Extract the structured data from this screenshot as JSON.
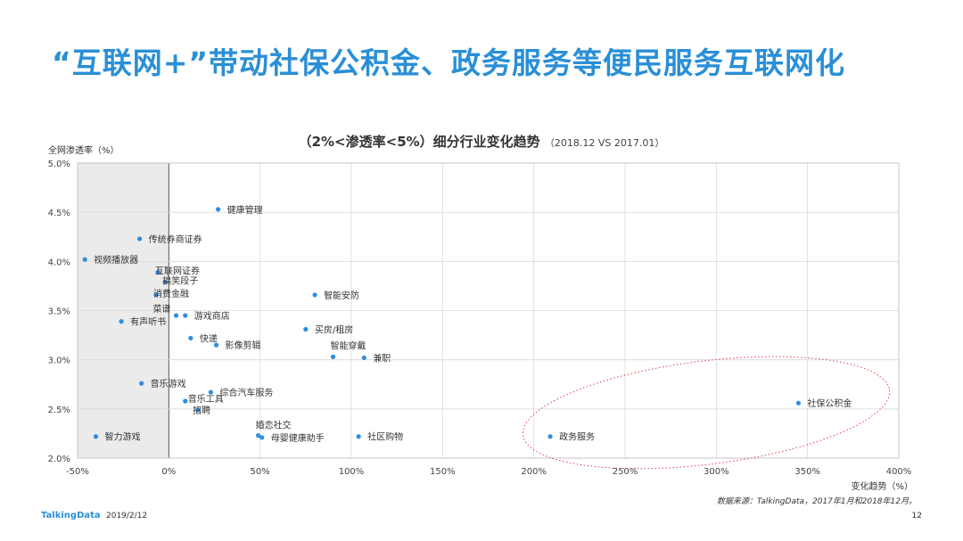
{
  "slide": {
    "title": "“互联网+”带动社保公积金、政务服务等便民服务互联网化",
    "source": "数据来源：TalkingData，2017年1月和2018年12月。",
    "footer_brand": "TalkingData",
    "footer_date": "2019/2/12",
    "page_number": "12"
  },
  "chart_data": {
    "type": "scatter",
    "title": "（2%<渗透率<5%）细分行业变化趋势",
    "subtitle": "（2018.12 VS 2017.01）",
    "xlabel": "变化趋势（%）",
    "ylabel": "全网渗透率（%）",
    "xlim": [
      -50,
      400
    ],
    "ylim": [
      2.0,
      5.0
    ],
    "x_ticks": [
      "-50%",
      "0%",
      "50%",
      "100%",
      "150%",
      "200%",
      "250%",
      "300%",
      "350%",
      "400%"
    ],
    "y_ticks": [
      "2.0%",
      "2.5%",
      "3.0%",
      "3.5%",
      "4.0%",
      "4.5%",
      "5.0%"
    ],
    "x_tick_values": [
      -50,
      0,
      50,
      100,
      150,
      200,
      250,
      300,
      350,
      400
    ],
    "y_tick_values": [
      2.0,
      2.5,
      3.0,
      3.5,
      4.0,
      4.5,
      5.0
    ],
    "grid": true,
    "shaded_negative_region": true,
    "highlight": "red dotted ellipse around 政务服务 and 社保公积金",
    "colors": {
      "point": "#2f8ee0",
      "shade": "#ebebeb",
      "ellipse": "#e0444c",
      "title": "#2a8fd6"
    },
    "points": [
      {
        "label": "健康管理",
        "x": 27,
        "y": 4.53
      },
      {
        "label": "传统券商证券",
        "x": -16,
        "y": 4.23
      },
      {
        "label": "视频播放器",
        "x": -46,
        "y": 4.02
      },
      {
        "label": "互联网证券",
        "x": -6,
        "y": 3.89
      },
      {
        "label": "搞笑段子",
        "x": -2,
        "y": 3.79
      },
      {
        "label": "消费金融",
        "x": -7,
        "y": 3.66
      },
      {
        "label": "菜谱",
        "x": 4,
        "y": 3.45
      },
      {
        "label": "游戏商店",
        "x": 9,
        "y": 3.45
      },
      {
        "label": "有声听书",
        "x": -26,
        "y": 3.39
      },
      {
        "label": "智能安防",
        "x": 80,
        "y": 3.66
      },
      {
        "label": "买房/租房",
        "x": 75,
        "y": 3.31
      },
      {
        "label": "快递",
        "x": 12,
        "y": 3.22
      },
      {
        "label": "影像剪辑",
        "x": 26,
        "y": 3.15
      },
      {
        "label": "智能穿戴",
        "x": 90,
        "y": 3.03
      },
      {
        "label": "兼职",
        "x": 107,
        "y": 3.02
      },
      {
        "label": "音乐游戏",
        "x": -15,
        "y": 2.76
      },
      {
        "label": "综合汽车服务",
        "x": 23,
        "y": 2.67
      },
      {
        "label": "音乐工具",
        "x": 9,
        "y": 2.58
      },
      {
        "label": "招聘",
        "x": 16,
        "y": 2.49
      },
      {
        "label": "婚恋社交",
        "x": 49,
        "y": 2.23
      },
      {
        "label": "母婴健康助手",
        "x": 51,
        "y": 2.21
      },
      {
        "label": "社区购物",
        "x": 104,
        "y": 2.22
      },
      {
        "label": "智力游戏",
        "x": -40,
        "y": 2.22
      },
      {
        "label": "政务服务",
        "x": 209,
        "y": 2.22
      },
      {
        "label": "社保公积金",
        "x": 345,
        "y": 2.56
      }
    ]
  }
}
